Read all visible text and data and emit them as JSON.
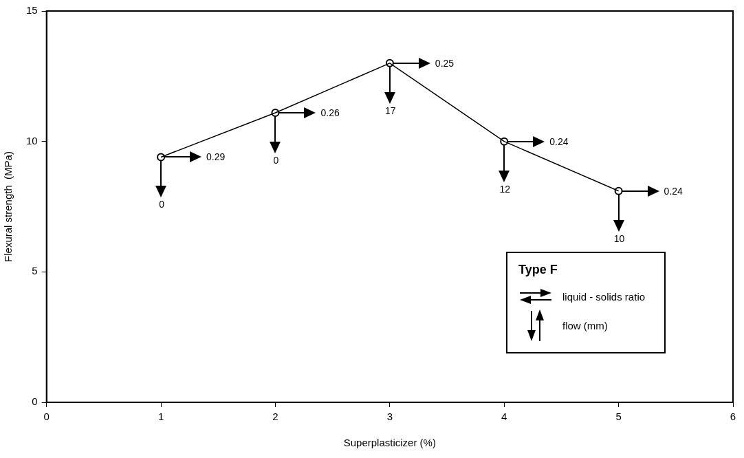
{
  "chart_data": {
    "type": "line",
    "xlabel": "Superplasticizer (%)",
    "ylabel": "Flexural strength  (MPa)",
    "x": [
      1,
      2,
      3,
      4,
      5
    ],
    "series": [
      {
        "color": "#000000",
        "values": [
          9.4,
          11.1,
          13.0,
          10.0,
          8.1
        ]
      }
    ],
    "xlim": [
      0,
      6
    ],
    "xticks": [
      0,
      1,
      2,
      3,
      4,
      5,
      6
    ],
    "ylim": [
      0,
      15
    ],
    "yticks": [
      0,
      5,
      10,
      15
    ],
    "grid": false,
    "legend": false,
    "marker": "circle",
    "line_style": "solid",
    "annotations": [
      "Type F",
      "liquid - solids ratio",
      "flow  (mm)",
      "0.29",
      {
        "text": "0",
        "x": 1,
        "y": 9.4
      },
      "0.26",
      {
        "text": "0",
        "x": 2,
        "y": 11.1
      },
      "0.25",
      {
        "text": "17",
        "x": 3,
        "y": 13.0
      },
      "0.24",
      {
        "text": "12",
        "x": 4,
        "y": 10.0
      },
      "0.24",
      {
        "text": "10",
        "x": 5,
        "y": 8.1
      }
    ]
  }
}
